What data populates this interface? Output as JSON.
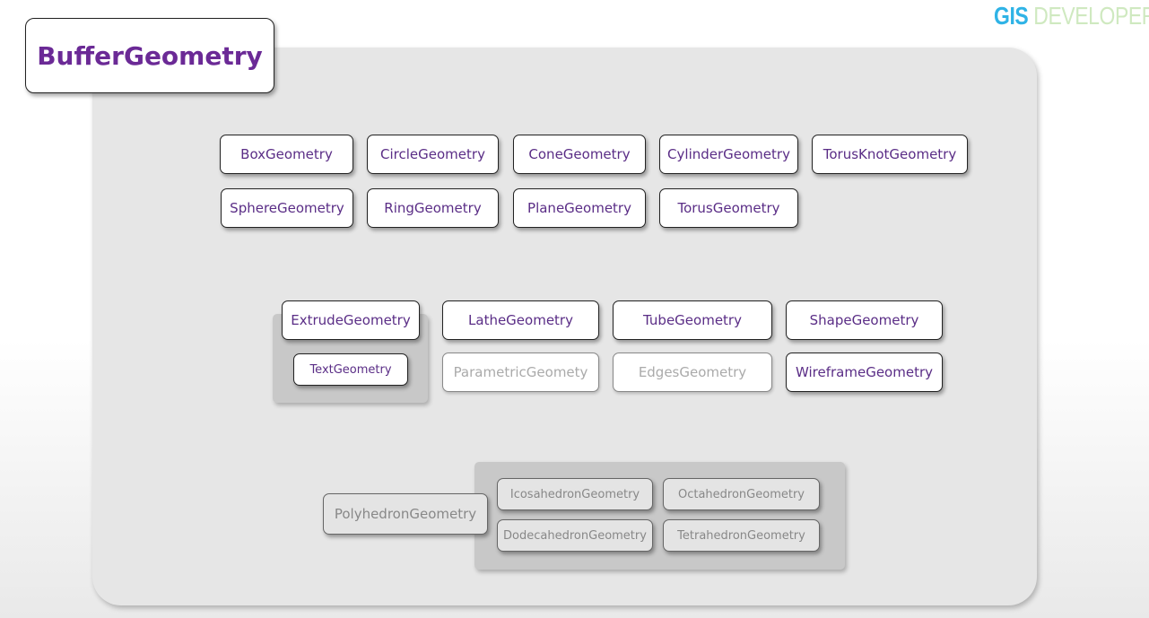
{
  "logo": {
    "part1": "GIS",
    "part2": "DEVELOPER"
  },
  "title": "BufferGeometry",
  "row1": [
    "BoxGeometry",
    "CircleGeometry",
    "ConeGeometry",
    "CylinderGeometry",
    "TorusKnotGeometry"
  ],
  "row2": [
    "SphereGeometry",
    "RingGeometry",
    "PlaneGeometry",
    "TorusGeometry"
  ],
  "group2": {
    "extrude": "ExtrudeGeometry",
    "text": "TextGeometry",
    "lathe": "LatheGeometry",
    "tube": "TubeGeometry",
    "shape": "ShapeGeometry",
    "parametric": "ParametricGeomety",
    "edges": "EdgesGeometry",
    "wireframe": "WireframeGeometry"
  },
  "group3": {
    "polyhedron": "PolyhedronGeometry",
    "icosahedron": "IcosahedronGeometry",
    "octahedron": "OctahedronGeometry",
    "dodecahedron": "DodecahedronGeometry",
    "tetrahedron": "TetrahedronGeometry"
  }
}
